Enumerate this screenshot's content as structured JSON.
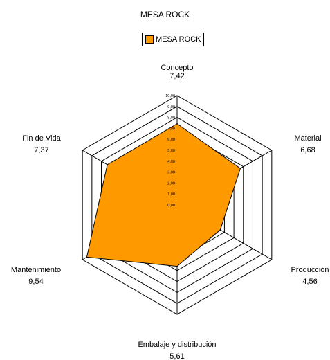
{
  "chart_data": {
    "type": "radar",
    "title": "MESA ROCK",
    "legend": {
      "position": "top",
      "entries": [
        "MESA ROCK"
      ]
    },
    "range": [
      0,
      10
    ],
    "ticks": [
      "0,00",
      "1,00",
      "2,00",
      "3,00",
      "4,00",
      "5,00",
      "6,00",
      "7,00",
      "8,00",
      "9,00",
      "10,00"
    ],
    "categories": [
      "Concepto",
      "Material",
      "Producción",
      "Embalaje y distribución",
      "Mantenimiento",
      "Fin de Vida"
    ],
    "value_labels": [
      "7,42",
      "6,68",
      "4,56",
      "5,61",
      "9,54",
      "7,37"
    ],
    "series": [
      {
        "name": "MESA ROCK",
        "values": [
          7.42,
          6.68,
          4.56,
          5.61,
          9.54,
          7.37
        ],
        "color": "#FF9900"
      }
    ],
    "grid": true
  }
}
